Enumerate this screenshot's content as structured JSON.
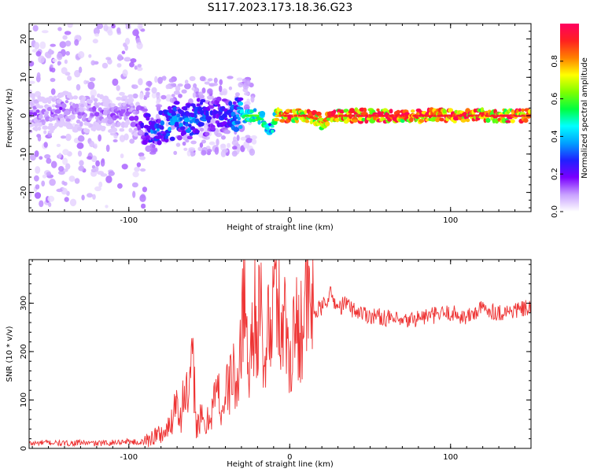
{
  "title": "S117.2023.173.18.36.G23",
  "chart_data": [
    {
      "type": "heatmap",
      "xlabel": "Height of straight line (km)",
      "ylabel": "Frequency (Hz)",
      "xlim": [
        -162,
        150
      ],
      "ylim": [
        -25,
        24
      ],
      "xticks": [
        -100,
        0,
        100
      ],
      "yticks": [
        -20,
        -10,
        0,
        10,
        20
      ],
      "colorbar": {
        "label": "Normalized spectral amplitude",
        "range": [
          0.0,
          1.0
        ],
        "ticks": [
          0.0,
          0.2,
          0.4,
          0.6,
          0.8
        ],
        "colormap": [
          "#ffffff",
          "#c8a0ff",
          "#7a00ff",
          "#2020ff",
          "#00a0ff",
          "#00ffff",
          "#00ff40",
          "#80ff00",
          "#ffff00",
          "#ff8000",
          "#ff2020",
          "#ff0060"
        ]
      },
      "ridge": {
        "x": [
          -162,
          -150,
          -140,
          -130,
          -120,
          -110,
          -100,
          -95,
          -90,
          -85,
          -80,
          -75,
          -70,
          -65,
          -60,
          -55,
          -50,
          -45,
          -40,
          -35,
          -30,
          -25,
          -20,
          -17,
          -15,
          -12,
          -10,
          -8,
          -5,
          0,
          10,
          18,
          20,
          22,
          25,
          30,
          40,
          60,
          80,
          100,
          120,
          140,
          150
        ],
        "y": [
          1,
          0,
          2,
          0,
          1,
          0,
          1,
          -1,
          -3,
          -4,
          -3,
          -2,
          -1,
          -2,
          -1,
          0,
          -1,
          1,
          0,
          0,
          0,
          0,
          0,
          -1,
          -3,
          -4,
          -2,
          0,
          0,
          0,
          0,
          -1,
          -2,
          -1,
          0,
          0,
          0,
          0,
          0,
          0,
          0,
          0,
          0
        ],
        "amplitude": [
          0.15,
          0.15,
          0.18,
          0.15,
          0.16,
          0.15,
          0.16,
          0.2,
          0.3,
          0.35,
          0.35,
          0.4,
          0.38,
          0.36,
          0.4,
          0.35,
          0.3,
          0.32,
          0.3,
          0.4,
          0.5,
          0.6,
          0.62,
          0.55,
          0.5,
          0.45,
          0.55,
          0.75,
          0.9,
          0.95,
          0.95,
          0.9,
          0.85,
          0.88,
          0.95,
          0.95,
          0.95,
          0.95,
          0.95,
          0.95,
          0.95,
          0.95,
          0.95
        ]
      }
    },
    {
      "type": "line",
      "xlabel": "Height of straight line (km)",
      "ylabel": "SNR (10 * v/v)",
      "xlim": [
        -162,
        150
      ],
      "ylim": [
        0,
        390
      ],
      "xticks": [
        -100,
        0,
        100
      ],
      "yticks": [
        0,
        100,
        200,
        300
      ],
      "color": "#ee3333",
      "series": [
        {
          "x": [
            -162,
            -150,
            -140,
            -130,
            -120,
            -110,
            -100,
            -95,
            -90,
            -85,
            -80,
            -75,
            -72,
            -70,
            -68,
            -65,
            -63,
            -60,
            -58,
            -55,
            -52,
            -50,
            -48,
            -45,
            -42,
            -40,
            -38,
            -35,
            -32,
            -30,
            -28,
            -26,
            -24,
            -22,
            -20,
            -18,
            -16,
            -14,
            -12,
            -10,
            -8,
            -6,
            -4,
            -2,
            0,
            2,
            5,
            8,
            10,
            15,
            20,
            25,
            30,
            35,
            40,
            50,
            60,
            70,
            80,
            90,
            100,
            110,
            120,
            130,
            140,
            150
          ],
          "y": [
            10,
            12,
            10,
            12,
            10,
            12,
            15,
            12,
            14,
            25,
            30,
            40,
            80,
            120,
            60,
            130,
            90,
            180,
            50,
            60,
            40,
            70,
            90,
            120,
            80,
            110,
            130,
            160,
            100,
            280,
            390,
            150,
            200,
            300,
            260,
            280,
            120,
            300,
            200,
            320,
            370,
            250,
            290,
            230,
            180,
            240,
            250,
            270,
            300,
            280,
            290,
            320,
            290,
            300,
            285,
            275,
            270,
            260,
            270,
            275,
            280,
            270,
            290,
            280,
            285,
            290
          ]
        }
      ]
    }
  ]
}
